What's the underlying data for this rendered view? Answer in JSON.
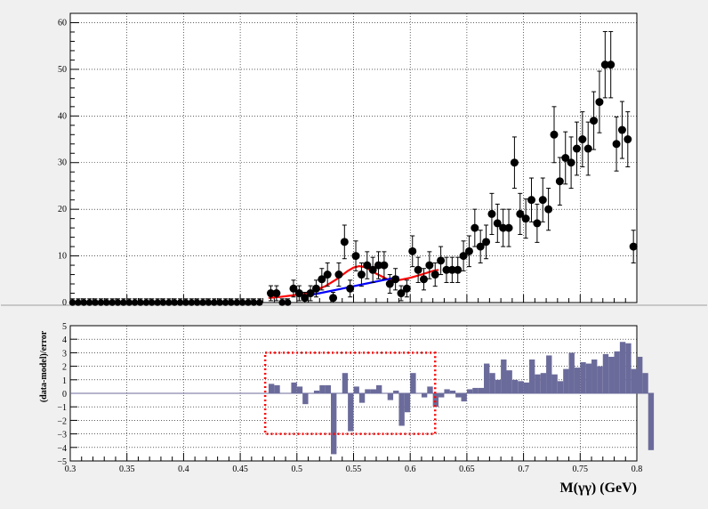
{
  "chart_data": [
    {
      "type": "scatter",
      "panel": "top",
      "title": "",
      "xlabel": "",
      "ylabel": "",
      "xlim": [
        0.3,
        0.8
      ],
      "ylim": [
        0,
        62
      ],
      "y_ticks": [
        "0",
        "10",
        "20",
        "30",
        "40",
        "50",
        "60"
      ],
      "grid": true,
      "points": [
        [
          0.302,
          0,
          0.8
        ],
        [
          0.307,
          0,
          0.8
        ],
        [
          0.312,
          0,
          0.8
        ],
        [
          0.317,
          0,
          0.8
        ],
        [
          0.322,
          0,
          0.8
        ],
        [
          0.327,
          0,
          0.8
        ],
        [
          0.332,
          0,
          0.8
        ],
        [
          0.337,
          0,
          0.8
        ],
        [
          0.342,
          0,
          0.8
        ],
        [
          0.347,
          0,
          0.8
        ],
        [
          0.352,
          0,
          0.8
        ],
        [
          0.357,
          0,
          0.8
        ],
        [
          0.362,
          0,
          0.8
        ],
        [
          0.367,
          0,
          0.8
        ],
        [
          0.372,
          0,
          0.8
        ],
        [
          0.377,
          0,
          0.8
        ],
        [
          0.382,
          0,
          0.8
        ],
        [
          0.387,
          0,
          0.8
        ],
        [
          0.392,
          0,
          0.8
        ],
        [
          0.397,
          0,
          0.8
        ],
        [
          0.402,
          0,
          0.8
        ],
        [
          0.407,
          0,
          0.8
        ],
        [
          0.412,
          0,
          0.8
        ],
        [
          0.417,
          0,
          0.8
        ],
        [
          0.422,
          0,
          0.8
        ],
        [
          0.427,
          0,
          0.8
        ],
        [
          0.432,
          0,
          0.8
        ],
        [
          0.437,
          0,
          0.8
        ],
        [
          0.442,
          0,
          0.8
        ],
        [
          0.447,
          0,
          0.8
        ],
        [
          0.452,
          0,
          0.8
        ],
        [
          0.457,
          0,
          0.8
        ],
        [
          0.462,
          0,
          0.8
        ],
        [
          0.467,
          0,
          0.8
        ],
        [
          0.477,
          2,
          1.6
        ],
        [
          0.482,
          2,
          1.6
        ],
        [
          0.487,
          0,
          0.8
        ],
        [
          0.492,
          0,
          0.8
        ],
        [
          0.497,
          3,
          1.8
        ],
        [
          0.502,
          2,
          1.6
        ],
        [
          0.507,
          1,
          1.2
        ],
        [
          0.512,
          2,
          1.6
        ],
        [
          0.517,
          3,
          1.8
        ],
        [
          0.522,
          5,
          2.3
        ],
        [
          0.527,
          6,
          2.5
        ],
        [
          0.532,
          1,
          1.2
        ],
        [
          0.537,
          6,
          2.5
        ],
        [
          0.542,
          13,
          3.6
        ],
        [
          0.547,
          3,
          1.8
        ],
        [
          0.552,
          10,
          3.2
        ],
        [
          0.557,
          6,
          2.5
        ],
        [
          0.562,
          8,
          2.9
        ],
        [
          0.567,
          7,
          2.7
        ],
        [
          0.572,
          8,
          2.9
        ],
        [
          0.577,
          8,
          2.9
        ],
        [
          0.582,
          4,
          2.0
        ],
        [
          0.587,
          5,
          2.3
        ],
        [
          0.592,
          2,
          1.6
        ],
        [
          0.597,
          3,
          1.8
        ],
        [
          0.602,
          11,
          3.3
        ],
        [
          0.607,
          7,
          2.7
        ],
        [
          0.612,
          5,
          2.3
        ],
        [
          0.617,
          8,
          2.9
        ],
        [
          0.622,
          6,
          2.5
        ],
        [
          0.627,
          9,
          3.0
        ],
        [
          0.632,
          7,
          2.7
        ],
        [
          0.637,
          7,
          2.7
        ],
        [
          0.642,
          7,
          2.7
        ],
        [
          0.647,
          10,
          3.2
        ],
        [
          0.652,
          11,
          3.3
        ],
        [
          0.657,
          16,
          4.0
        ],
        [
          0.662,
          12,
          3.5
        ],
        [
          0.667,
          13,
          3.6
        ],
        [
          0.672,
          19,
          4.4
        ],
        [
          0.677,
          17,
          4.1
        ],
        [
          0.682,
          16,
          4.0
        ],
        [
          0.687,
          16,
          4.0
        ],
        [
          0.692,
          30,
          5.5
        ],
        [
          0.697,
          19,
          4.4
        ],
        [
          0.702,
          18,
          4.2
        ],
        [
          0.707,
          22,
          4.7
        ],
        [
          0.712,
          17,
          4.1
        ],
        [
          0.717,
          22,
          4.7
        ],
        [
          0.722,
          20,
          4.5
        ],
        [
          0.727,
          36,
          6.0
        ],
        [
          0.732,
          26,
          5.1
        ],
        [
          0.737,
          31,
          5.6
        ],
        [
          0.742,
          30,
          5.5
        ],
        [
          0.747,
          33,
          5.7
        ],
        [
          0.752,
          35,
          5.9
        ],
        [
          0.757,
          33,
          5.7
        ],
        [
          0.762,
          39,
          6.2
        ],
        [
          0.767,
          43,
          6.6
        ],
        [
          0.772,
          51,
          7.1
        ],
        [
          0.777,
          51,
          7.1
        ],
        [
          0.782,
          34,
          5.8
        ],
        [
          0.787,
          37,
          6.1
        ],
        [
          0.792,
          35,
          5.9
        ],
        [
          0.797,
          12,
          3.5
        ]
      ],
      "series": [
        {
          "color": "#ff0000",
          "x": [
            0.475,
            0.485,
            0.495,
            0.505,
            0.515,
            0.525,
            0.535,
            0.545,
            0.55,
            0.555,
            0.56,
            0.565,
            0.57,
            0.58,
            0.59,
            0.6,
            0.61,
            0.62,
            0.625
          ],
          "y": [
            1.0,
            1.2,
            1.5,
            1.8,
            2.5,
            3.5,
            5.0,
            6.8,
            7.5,
            7.8,
            7.6,
            7.0,
            6.2,
            5.0,
            4.8,
            5.3,
            6.0,
            6.8,
            7.0
          ]
        },
        {
          "color": "#0000ff",
          "x": [
            0.505,
            0.52,
            0.54,
            0.56,
            0.58,
            0.59
          ],
          "y": [
            1.3,
            2.0,
            3.0,
            4.0,
            5.0,
            5.5
          ]
        }
      ]
    },
    {
      "type": "bar",
      "panel": "bottom",
      "xlabel": "M(γγ) (GeV)",
      "ylabel": "(data-model)/error",
      "xlim": [
        0.3,
        0.8
      ],
      "ylim": [
        -5,
        5
      ],
      "x_ticks": [
        "0.3",
        "0.35",
        "0.4",
        "0.45",
        "0.5",
        "0.55",
        "0.6",
        "0.65",
        "0.7",
        "0.75",
        "0.8"
      ],
      "y_ticks": [
        "−5",
        "−4",
        "−3",
        "−2",
        "−1",
        "0",
        "1",
        "2",
        "3",
        "4",
        "5"
      ],
      "grid": true,
      "bin_start": 0.475,
      "bin_width": 0.005,
      "values": [
        0.7,
        0.6,
        0,
        0,
        0.8,
        0.5,
        -0.8,
        0,
        0.2,
        0.6,
        0.6,
        -4.5,
        0,
        1.5,
        -2.8,
        0.5,
        -0.7,
        0.3,
        0.3,
        0.6,
        0,
        -0.5,
        0.2,
        -2.4,
        -1.4,
        1.5,
        0,
        -0.3,
        0.5,
        -1.0,
        -0.3,
        0.3,
        0.2,
        -0.3,
        -0.6,
        0.3,
        0.4,
        0.4,
        2.2,
        1.5,
        1.0,
        2.5,
        1.7,
        1.0,
        0.9,
        0.8,
        2.5,
        1.4,
        1.5,
        2.8,
        1.4,
        0.9,
        1.8,
        3.0,
        1.9,
        2.3,
        2.2,
        2.5,
        2.0,
        2.9,
        2.7,
        3.1,
        3.8,
        3.7,
        1.8,
        2.7,
        1.5,
        -4.2
      ]
    }
  ],
  "annotation": {
    "color": "#ff0000",
    "x0": 0.472,
    "x1": 0.622,
    "y0": -3.0,
    "y1": 3.0
  }
}
